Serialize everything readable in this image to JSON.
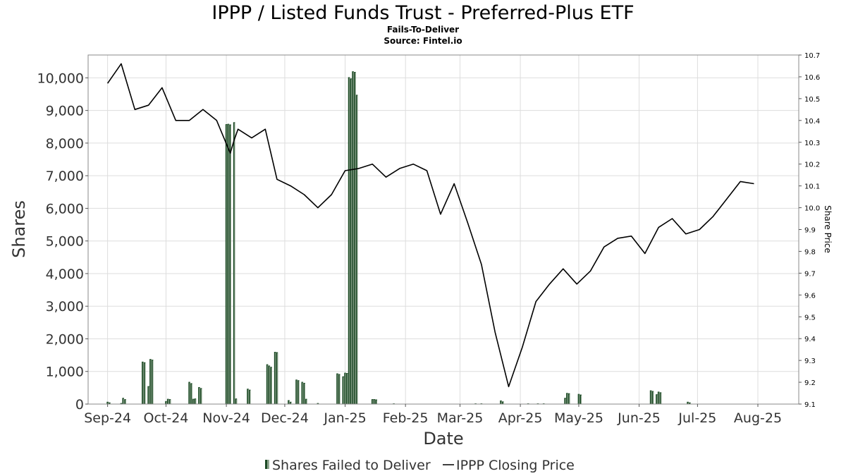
{
  "chart_data": {
    "type": "bar",
    "title": "IPPP / Listed Funds Trust - Preferred-Plus ETF",
    "subtitle": "Fails-To-Deliver",
    "source": "Source: Fintel.io",
    "xlabel": "Date",
    "ylabel": "Shares",
    "y2label": "Share Price",
    "ylim": [
      0,
      10700
    ],
    "y2lim": [
      9.1,
      10.7
    ],
    "xlim": [
      "2024-09-10",
      "2025-09-10"
    ],
    "grid": true,
    "legend_position": "bottom",
    "y_ticks": [
      {
        "value": 0,
        "label": "0"
      },
      {
        "value": 1000,
        "label": "1,000"
      },
      {
        "value": 2000,
        "label": "2,000"
      },
      {
        "value": 3000,
        "label": "3,000"
      },
      {
        "value": 4000,
        "label": "4,000"
      },
      {
        "value": 5000,
        "label": "5,000"
      },
      {
        "value": 6000,
        "label": "6,000"
      },
      {
        "value": 7000,
        "label": "7,000"
      },
      {
        "value": 8000,
        "label": "8,000"
      },
      {
        "value": 9000,
        "label": "9,000"
      },
      {
        "value": 10000,
        "label": "10,000"
      }
    ],
    "y2_ticks": [
      {
        "value": 9.1,
        "label": "9.1"
      },
      {
        "value": 9.2,
        "label": "9.2"
      },
      {
        "value": 9.3,
        "label": "9.3"
      },
      {
        "value": 9.4,
        "label": "9.4"
      },
      {
        "value": 9.5,
        "label": "9.5"
      },
      {
        "value": 9.6,
        "label": "9.6"
      },
      {
        "value": 9.7,
        "label": "9.7"
      },
      {
        "value": 9.8,
        "label": "9.8"
      },
      {
        "value": 9.9,
        "label": "9.9"
      },
      {
        "value": 10.0,
        "label": "10.0"
      },
      {
        "value": 10.1,
        "label": "10.1"
      },
      {
        "value": 10.2,
        "label": "10.2"
      },
      {
        "value": 10.3,
        "label": "10.3"
      },
      {
        "value": 10.4,
        "label": "10.4"
      },
      {
        "value": 10.5,
        "label": "10.5"
      },
      {
        "value": 10.6,
        "label": "10.6"
      },
      {
        "value": 10.7,
        "label": "10.7"
      }
    ],
    "x_ticks": [
      {
        "date": "2024-09-20",
        "label": "Sep-24"
      },
      {
        "date": "2024-10-20",
        "label": "Oct-24"
      },
      {
        "date": "2024-11-20",
        "label": "Nov-24"
      },
      {
        "date": "2024-12-20",
        "label": "Dec-24"
      },
      {
        "date": "2025-01-20",
        "label": "Jan-25"
      },
      {
        "date": "2025-02-20",
        "label": "Feb-25"
      },
      {
        "date": "2025-03-20",
        "label": "Mar-25"
      },
      {
        "date": "2025-04-20",
        "label": "Apr-25"
      },
      {
        "date": "2025-05-20",
        "label": "May-25"
      },
      {
        "date": "2025-06-20",
        "label": "Jun-25"
      },
      {
        "date": "2025-07-20",
        "label": "Jul-25"
      },
      {
        "date": "2025-08-20",
        "label": "Aug-25"
      }
    ],
    "series": [
      {
        "name": "Shares Failed to Deliver",
        "type": "bar",
        "color": "#1c4a25",
        "highlight_color": "#8fa58f",
        "points": [
          {
            "date": "2024-09-20",
            "value": 70
          },
          {
            "date": "2024-09-21",
            "value": 50
          },
          {
            "date": "2024-09-27",
            "value": 30
          },
          {
            "date": "2024-09-28",
            "value": 190
          },
          {
            "date": "2024-09-29",
            "value": 150
          },
          {
            "date": "2024-10-08",
            "value": 1300
          },
          {
            "date": "2024-10-09",
            "value": 1280
          },
          {
            "date": "2024-10-11",
            "value": 550
          },
          {
            "date": "2024-10-12",
            "value": 1380
          },
          {
            "date": "2024-10-13",
            "value": 1360
          },
          {
            "date": "2024-10-20",
            "value": 90
          },
          {
            "date": "2024-10-21",
            "value": 160
          },
          {
            "date": "2024-10-22",
            "value": 150
          },
          {
            "date": "2024-11-01",
            "value": 680
          },
          {
            "date": "2024-11-02",
            "value": 640
          },
          {
            "date": "2024-11-03",
            "value": 160
          },
          {
            "date": "2024-11-04",
            "value": 170
          },
          {
            "date": "2024-11-06",
            "value": 520
          },
          {
            "date": "2024-11-07",
            "value": 490
          },
          {
            "date": "2024-11-20",
            "value": 8580
          },
          {
            "date": "2024-11-21",
            "value": 8590
          },
          {
            "date": "2024-11-22",
            "value": 8570
          },
          {
            "date": "2024-11-24",
            "value": 8640
          },
          {
            "date": "2024-11-25",
            "value": 170
          },
          {
            "date": "2024-12-01",
            "value": 470
          },
          {
            "date": "2024-12-02",
            "value": 440
          },
          {
            "date": "2024-12-11",
            "value": 1220
          },
          {
            "date": "2024-12-12",
            "value": 1180
          },
          {
            "date": "2024-12-13",
            "value": 1140
          },
          {
            "date": "2024-12-15",
            "value": 1600
          },
          {
            "date": "2024-12-16",
            "value": 1590
          },
          {
            "date": "2024-12-22",
            "value": 120
          },
          {
            "date": "2024-12-23",
            "value": 70
          },
          {
            "date": "2024-12-26",
            "value": 750
          },
          {
            "date": "2024-12-27",
            "value": 730
          },
          {
            "date": "2024-12-29",
            "value": 680
          },
          {
            "date": "2024-12-30",
            "value": 650
          },
          {
            "date": "2024-12-31",
            "value": 160
          },
          {
            "date": "2025-01-06",
            "value": 30
          },
          {
            "date": "2025-01-16",
            "value": 940
          },
          {
            "date": "2025-01-17",
            "value": 920
          },
          {
            "date": "2025-01-19",
            "value": 850
          },
          {
            "date": "2025-01-20",
            "value": 960
          },
          {
            "date": "2025-01-21",
            "value": 950
          },
          {
            "date": "2025-01-22",
            "value": 10020
          },
          {
            "date": "2025-01-23",
            "value": 9980
          },
          {
            "date": "2025-01-24",
            "value": 10200
          },
          {
            "date": "2025-01-25",
            "value": 10180
          },
          {
            "date": "2025-01-26",
            "value": 9480
          },
          {
            "date": "2025-02-03",
            "value": 150
          },
          {
            "date": "2025-02-04",
            "value": 150
          },
          {
            "date": "2025-02-05",
            "value": 140
          },
          {
            "date": "2025-02-14",
            "value": 20
          },
          {
            "date": "2025-03-28",
            "value": 20
          },
          {
            "date": "2025-03-31",
            "value": 20
          },
          {
            "date": "2025-04-10",
            "value": 110
          },
          {
            "date": "2025-04-11",
            "value": 80
          },
          {
            "date": "2025-04-24",
            "value": 20
          },
          {
            "date": "2025-04-29",
            "value": 20
          },
          {
            "date": "2025-05-02",
            "value": 20
          },
          {
            "date": "2025-05-13",
            "value": 190
          },
          {
            "date": "2025-05-14",
            "value": 340
          },
          {
            "date": "2025-05-15",
            "value": 330
          },
          {
            "date": "2025-05-20",
            "value": 310
          },
          {
            "date": "2025-05-21",
            "value": 290
          },
          {
            "date": "2025-06-26",
            "value": 420
          },
          {
            "date": "2025-06-27",
            "value": 400
          },
          {
            "date": "2025-06-29",
            "value": 300
          },
          {
            "date": "2025-06-30",
            "value": 380
          },
          {
            "date": "2025-07-01",
            "value": 360
          },
          {
            "date": "2025-07-15",
            "value": 70
          },
          {
            "date": "2025-07-16",
            "value": 50
          }
        ]
      },
      {
        "name": "IPPP Closing Price",
        "type": "line",
        "axis": "right",
        "color": "#000000",
        "points": [
          {
            "date": "2024-09-20",
            "value": 10.57
          },
          {
            "date": "2024-09-27",
            "value": 10.66
          },
          {
            "date": "2024-10-04",
            "value": 10.45
          },
          {
            "date": "2024-10-11",
            "value": 10.47
          },
          {
            "date": "2024-10-18",
            "value": 10.55
          },
          {
            "date": "2024-10-25",
            "value": 10.4
          },
          {
            "date": "2024-11-01",
            "value": 10.4
          },
          {
            "date": "2024-11-08",
            "value": 10.45
          },
          {
            "date": "2024-11-15",
            "value": 10.4
          },
          {
            "date": "2024-11-22",
            "value": 10.25
          },
          {
            "date": "2024-11-24",
            "value": 10.31
          },
          {
            "date": "2024-11-26",
            "value": 10.36
          },
          {
            "date": "2024-12-03",
            "value": 10.32
          },
          {
            "date": "2024-12-10",
            "value": 10.36
          },
          {
            "date": "2024-12-16",
            "value": 10.13
          },
          {
            "date": "2024-12-23",
            "value": 10.1
          },
          {
            "date": "2024-12-30",
            "value": 10.06
          },
          {
            "date": "2025-01-06",
            "value": 10.0
          },
          {
            "date": "2025-01-13",
            "value": 10.06
          },
          {
            "date": "2025-01-20",
            "value": 10.17
          },
          {
            "date": "2025-01-27",
            "value": 10.18
          },
          {
            "date": "2025-02-03",
            "value": 10.2
          },
          {
            "date": "2025-02-10",
            "value": 10.14
          },
          {
            "date": "2025-02-17",
            "value": 10.18
          },
          {
            "date": "2025-02-24",
            "value": 10.2
          },
          {
            "date": "2025-03-03",
            "value": 10.17
          },
          {
            "date": "2025-03-10",
            "value": 9.97
          },
          {
            "date": "2025-03-17",
            "value": 10.11
          },
          {
            "date": "2025-03-24",
            "value": 9.93
          },
          {
            "date": "2025-03-31",
            "value": 9.74
          },
          {
            "date": "2025-04-07",
            "value": 9.43
          },
          {
            "date": "2025-04-14",
            "value": 9.18
          },
          {
            "date": "2025-04-21",
            "value": 9.36
          },
          {
            "date": "2025-04-28",
            "value": 9.57
          },
          {
            "date": "2025-05-05",
            "value": 9.65
          },
          {
            "date": "2025-05-12",
            "value": 9.72
          },
          {
            "date": "2025-05-19",
            "value": 9.65
          },
          {
            "date": "2025-05-26",
            "value": 9.71
          },
          {
            "date": "2025-06-02",
            "value": 9.82
          },
          {
            "date": "2025-06-09",
            "value": 9.86
          },
          {
            "date": "2025-06-16",
            "value": 9.87
          },
          {
            "date": "2025-06-23",
            "value": 9.79
          },
          {
            "date": "2025-06-30",
            "value": 9.91
          },
          {
            "date": "2025-07-07",
            "value": 9.95
          },
          {
            "date": "2025-07-14",
            "value": 9.88
          },
          {
            "date": "2025-07-21",
            "value": 9.9
          },
          {
            "date": "2025-07-28",
            "value": 9.96
          },
          {
            "date": "2025-08-04",
            "value": 10.04
          },
          {
            "date": "2025-08-11",
            "value": 10.12
          },
          {
            "date": "2025-08-18",
            "value": 10.11
          }
        ]
      }
    ]
  }
}
